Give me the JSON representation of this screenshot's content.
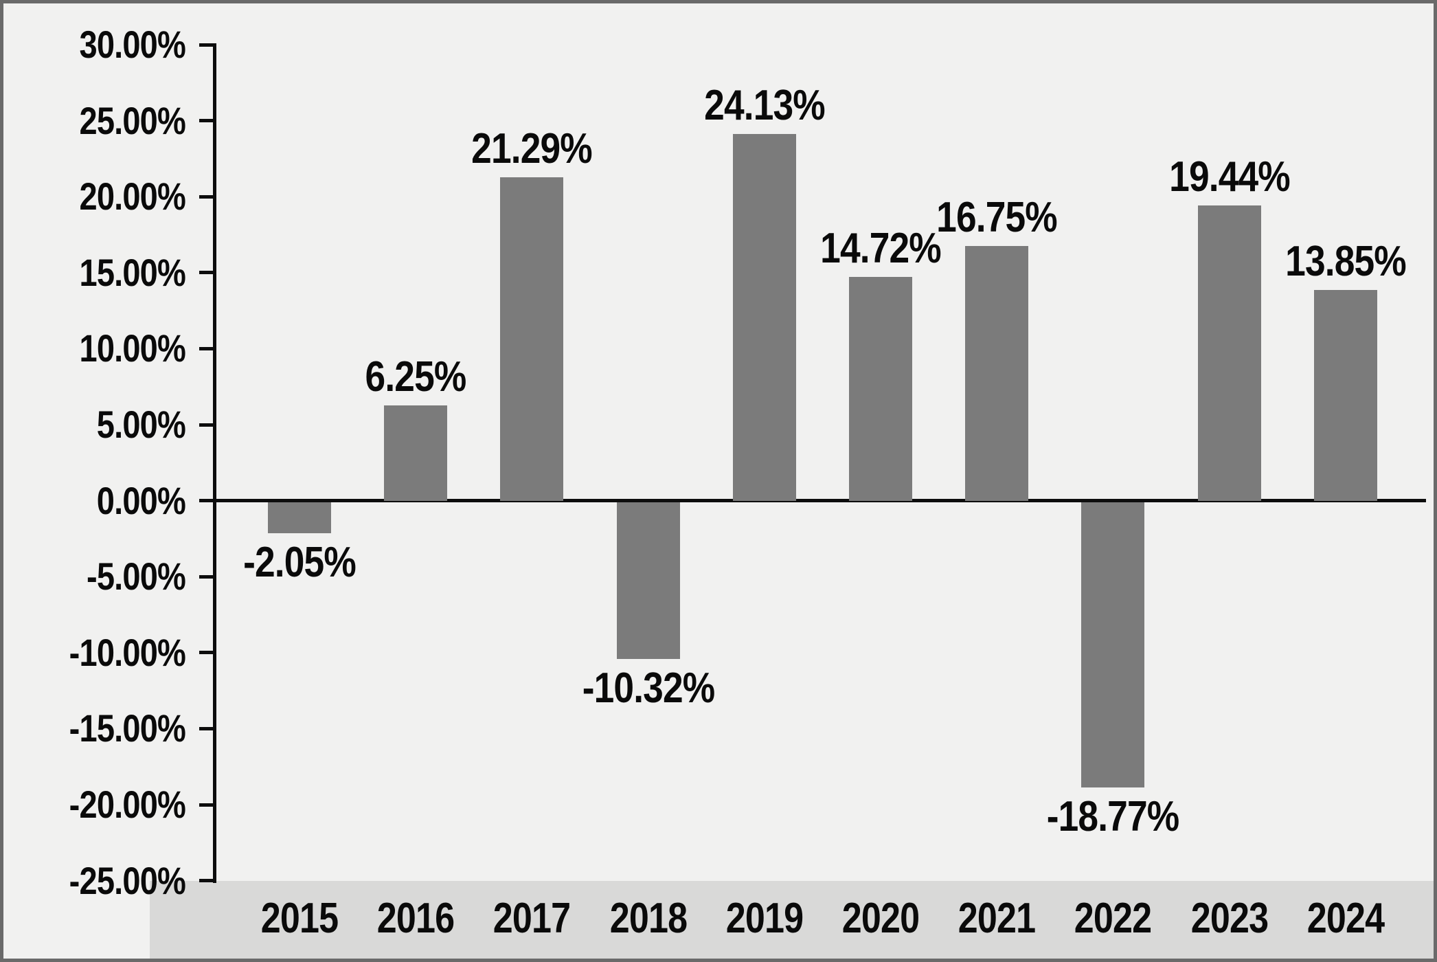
{
  "chart_data": {
    "type": "bar",
    "title": "",
    "xlabel": "",
    "ylabel": "",
    "categories": [
      "2015",
      "2016",
      "2017",
      "2018",
      "2019",
      "2020",
      "2021",
      "2022",
      "2023",
      "2024"
    ],
    "values": [
      -2.05,
      6.25,
      21.29,
      -10.32,
      24.13,
      14.72,
      16.75,
      -18.77,
      19.44,
      13.85
    ],
    "value_labels": [
      "-2.05%",
      "6.25%",
      "21.29%",
      "-10.32%",
      "24.13%",
      "14.72%",
      "16.75%",
      "-18.77%",
      "19.44%",
      "13.85%"
    ],
    "y_tick_labels": [
      "30.00%",
      "25.00%",
      "20.00%",
      "15.00%",
      "10.00%",
      "5.00%",
      "0.00%",
      "-5.00%",
      "-10.00%",
      "-15.00%",
      "-20.00%",
      "-25.00%"
    ],
    "y_tick_values": [
      30,
      25,
      20,
      15,
      10,
      5,
      0,
      -5,
      -10,
      -15,
      -20,
      -25
    ],
    "ylim": [
      -25,
      30
    ],
    "grid": "off",
    "legend": "none",
    "bar_color": "#7b7b7b",
    "background_color": "#f1f1f0",
    "category_band_color": "#d9d9d8",
    "axis_color": "#0d0d0d",
    "text_color": "#0a0a0a",
    "border_color": "#6a6a6a"
  }
}
